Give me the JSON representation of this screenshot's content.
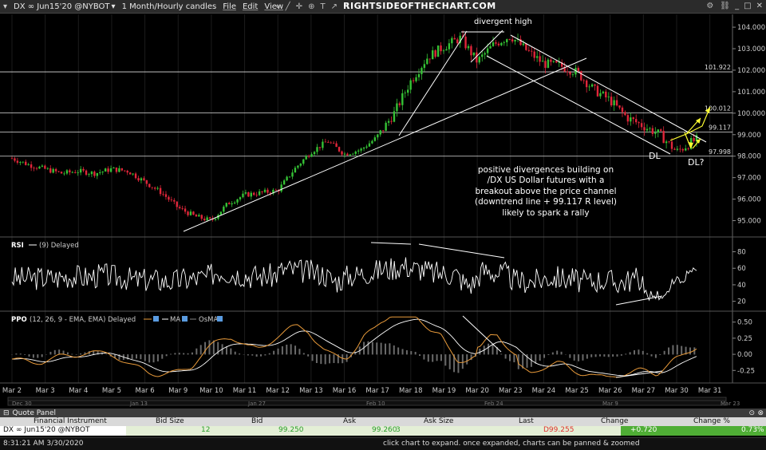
{
  "toolbar": {
    "symbol": "DX ∞ Jun15'20 @NYBOT",
    "period": "1 Month/Hourly candles",
    "menus": [
      "File",
      "Edit",
      "View"
    ],
    "brand": "RIGHTSIDEOFTHECHART.COM"
  },
  "annotations": {
    "divergent_high": "divergent high",
    "note": [
      "positive divergences building on",
      "/DX US Dollar futures with a",
      "breakout above the price channel",
      "(downtrend line + 99.117 R level)",
      "likely to spark a rally"
    ],
    "dl": "DL",
    "dl_q": "DL?"
  },
  "price_panel": {
    "y_ticks": [
      "104.000",
      "103.000",
      "102.000",
      "101.000",
      "100.000",
      "99.000",
      "98.000",
      "97.000",
      "96.000",
      "95.000"
    ],
    "levels": [
      {
        "label": "101.922",
        "value": 101.922
      },
      {
        "label": "100.012",
        "value": 100.012
      },
      {
        "label": "99.117",
        "value": 99.117
      },
      {
        "label": "97.998",
        "value": 97.998
      }
    ]
  },
  "rsi_panel": {
    "title": "RSI",
    "legend": "(9) Delayed",
    "y_ticks": [
      "80",
      "60",
      "40",
      "20"
    ]
  },
  "ppo_panel": {
    "title": "PPO",
    "legend": "(12, 26, 9 - EMA, EMA) Delayed",
    "ma_label": "MA",
    "osma_label": "OsMA",
    "y_ticks": [
      "0.50",
      "0.25",
      "0.00",
      "-0.25"
    ]
  },
  "x_axis": {
    "labels": [
      "Mar 2",
      "Mar 3",
      "Mar 4",
      "Mar 5",
      "Mar 6",
      "Mar 9",
      "Mar 10",
      "Mar 11",
      "Mar 12",
      "Mar 13",
      "Mar 16",
      "Mar 17",
      "Mar 18",
      "Mar 19",
      "Mar 20",
      "Mar 23",
      "Mar 24",
      "Mar 25",
      "Mar 26",
      "Mar 27",
      "Mar 30",
      "Mar 31"
    ],
    "overview_labels": [
      "Dec 30",
      "Jan 13",
      "Jan 27",
      "Feb 10",
      "Feb 24",
      "Mar 9",
      "Mar 23"
    ]
  },
  "quote_panel": {
    "title": "Quote Panel",
    "columns": [
      "Financial Instrument",
      "Bid Size",
      "Bid",
      "Ask",
      "Ask Size",
      "Last",
      "Change",
      "Change %"
    ],
    "row": {
      "instrument": "DX ∞ Jun15'20 @NYBOT",
      "bid_size": "12",
      "bid": "99.250",
      "ask": "99.260",
      "ask_size": "3",
      "last": "D99.255",
      "change": "+0.720",
      "change_pct": "0.73%"
    }
  },
  "status": {
    "time": "8:31:21 AM 3/30/2020",
    "hint": "click chart to expand. once expanded, charts can be panned & zoomed"
  },
  "colors": {
    "background": "#000000",
    "up": "#35c235",
    "down": "#e0263a",
    "ppo_line": "#e89a3a",
    "ma_line": "#ffffff",
    "annotation_arrow": "#ffff33"
  },
  "chart_data": [
    {
      "type": "candlestick",
      "title": "",
      "ylim": [
        94.5,
        104.3
      ],
      "x_ticks": [
        "Mar 2",
        "Mar 3",
        "Mar 4",
        "Mar 5",
        "Mar 6",
        "Mar 9",
        "Mar 10",
        "Mar 11",
        "Mar 12",
        "Mar 13",
        "Mar 16",
        "Mar 17",
        "Mar 18",
        "Mar 19",
        "Mar 20",
        "Mar 23",
        "Mar 24",
        "Mar 25",
        "Mar 26",
        "Mar 27",
        "Mar 30",
        "Mar 31"
      ],
      "close_path": [
        [
          0,
          97.9
        ],
        [
          0.5,
          97.6
        ],
        [
          1,
          97.4
        ],
        [
          1.5,
          97.2
        ],
        [
          2,
          97.3
        ],
        [
          2.5,
          97.2
        ],
        [
          3,
          97.4
        ],
        [
          3.5,
          97.3
        ],
        [
          4,
          96.8
        ],
        [
          4.5,
          96.3
        ],
        [
          5,
          95.6
        ],
        [
          5.5,
          95.2
        ],
        [
          6,
          95.0
        ],
        [
          6.5,
          95.8
        ],
        [
          7,
          96.2
        ],
        [
          7.5,
          96.3
        ],
        [
          8,
          96.4
        ],
        [
          8.5,
          97.4
        ],
        [
          9,
          98.2
        ],
        [
          9.5,
          98.7
        ],
        [
          10,
          98.1
        ],
        [
          10.5,
          98.3
        ],
        [
          11,
          98.9
        ],
        [
          11.5,
          100.0
        ],
        [
          12,
          101.5
        ],
        [
          12.5,
          102.6
        ],
        [
          13,
          103.1
        ],
        [
          13.5,
          103.5
        ],
        [
          14,
          102.4
        ],
        [
          14.5,
          103.2
        ],
        [
          15,
          103.6
        ],
        [
          15.5,
          102.9
        ],
        [
          16,
          102.3
        ],
        [
          16.5,
          102.2
        ],
        [
          17,
          101.9
        ],
        [
          17.5,
          101.1
        ],
        [
          18,
          100.6
        ],
        [
          18.5,
          99.8
        ],
        [
          19,
          99.4
        ],
        [
          19.5,
          99.0
        ],
        [
          20,
          98.2
        ],
        [
          20.5,
          98.7
        ],
        [
          21,
          99.0
        ]
      ],
      "horizontal_levels": [
        101.922,
        100.012,
        99.117,
        97.998
      ]
    },
    {
      "type": "line",
      "name": "RSI",
      "ylim": [
        10,
        95
      ],
      "y_ticks": [
        80,
        60,
        40,
        20
      ]
    },
    {
      "type": "line",
      "name": "PPO",
      "ylim": [
        -0.42,
        0.62
      ],
      "y_ticks": [
        0.5,
        0.25,
        0.0,
        -0.25
      ]
    }
  ]
}
